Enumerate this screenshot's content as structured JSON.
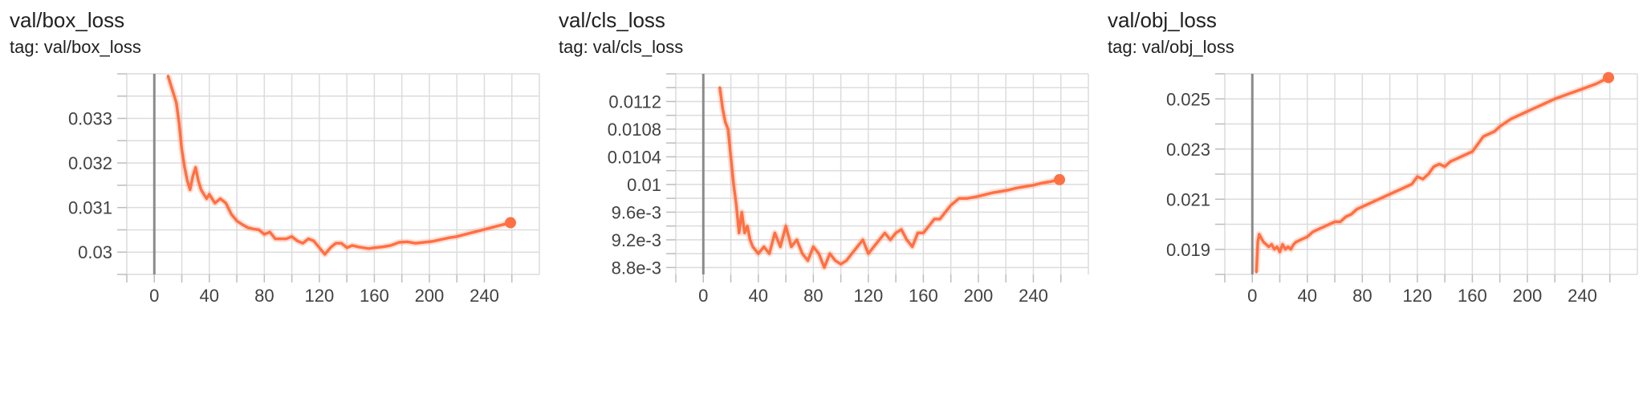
{
  "accent_color": "#ff7043",
  "charts": [
    {
      "title": "val/box_loss",
      "tag": "tag: val/box_loss"
    },
    {
      "title": "val/cls_loss",
      "tag": "tag: val/cls_loss"
    },
    {
      "title": "val/obj_loss",
      "tag": "tag: val/obj_loss"
    }
  ],
  "chart_data": [
    {
      "type": "line",
      "title": "val/box_loss",
      "xlabel": "",
      "ylabel": "",
      "xlim": [
        -20,
        280
      ],
      "ylim": [
        0.0295,
        0.034
      ],
      "xticks": [
        0,
        40,
        80,
        120,
        160,
        200,
        240
      ],
      "xtick_labels": [
        "0",
        "40",
        "80",
        "120",
        "160",
        "200",
        "240"
      ],
      "yticks": [
        0.03,
        0.031,
        0.032,
        0.033
      ],
      "ytick_labels": [
        "0.03",
        "0.031",
        "0.032",
        "0.033"
      ],
      "grid": true,
      "last_point": [
        259,
        0.03066
      ],
      "series": [
        {
          "smoothed": true,
          "x": [
            10,
            12,
            14,
            16,
            18,
            20,
            22,
            24,
            26,
            28,
            30,
            32,
            34,
            36,
            38,
            40,
            44,
            48,
            52,
            56,
            60,
            64,
            68,
            72,
            76,
            80,
            84,
            88,
            92,
            96,
            100,
            104,
            108,
            112,
            116,
            120,
            124,
            128,
            132,
            136,
            140,
            144,
            148,
            152,
            156,
            160,
            166,
            172,
            178,
            184,
            190,
            196,
            202,
            208,
            214,
            220,
            230,
            240,
            250,
            259
          ],
          "y": [
            0.03395,
            0.03375,
            0.03355,
            0.03335,
            0.0329,
            0.0323,
            0.0319,
            0.0316,
            0.0314,
            0.0317,
            0.0319,
            0.0316,
            0.0314,
            0.0313,
            0.0312,
            0.0313,
            0.0311,
            0.0312,
            0.0311,
            0.03085,
            0.0307,
            0.03062,
            0.03055,
            0.03052,
            0.0305,
            0.0304,
            0.03045,
            0.0303,
            0.0303,
            0.0303,
            0.03035,
            0.03025,
            0.0302,
            0.0303,
            0.03025,
            0.0301,
            0.02995,
            0.0301,
            0.0302,
            0.0302,
            0.0301,
            0.03015,
            0.03012,
            0.0301,
            0.03008,
            0.0301,
            0.03012,
            0.03015,
            0.03022,
            0.03023,
            0.0302,
            0.03022,
            0.03024,
            0.03028,
            0.03032,
            0.03035,
            0.03043,
            0.03051,
            0.03059,
            0.03066
          ]
        }
      ]
    },
    {
      "type": "line",
      "title": "val/cls_loss",
      "xlabel": "",
      "ylabel": "",
      "xlim": [
        -20,
        280
      ],
      "ylim": [
        0.0087,
        0.0116
      ],
      "xticks": [
        0,
        40,
        80,
        120,
        160,
        200,
        240
      ],
      "xtick_labels": [
        "0",
        "40",
        "80",
        "120",
        "160",
        "200",
        "240"
      ],
      "yticks": [
        0.0088,
        0.0092,
        0.0096,
        0.01,
        0.0104,
        0.0108,
        0.0112
      ],
      "ytick_labels": [
        "8.8e-3",
        "9.2e-3",
        "9.6e-3",
        "0.01",
        "0.0104",
        "0.0108",
        "0.0112"
      ],
      "grid": true,
      "last_point": [
        259,
        0.01007
      ],
      "series": [
        {
          "smoothed": true,
          "x": [
            12,
            14,
            16,
            18,
            20,
            22,
            24,
            26,
            28,
            30,
            32,
            34,
            36,
            40,
            44,
            48,
            52,
            56,
            60,
            64,
            68,
            72,
            76,
            80,
            84,
            88,
            92,
            96,
            100,
            104,
            108,
            112,
            116,
            120,
            124,
            128,
            132,
            136,
            140,
            144,
            148,
            152,
            156,
            160,
            164,
            168,
            172,
            176,
            180,
            186,
            192,
            198,
            204,
            210,
            216,
            222,
            228,
            234,
            240,
            246,
            252,
            259
          ],
          "y": [
            0.0114,
            0.0111,
            0.0109,
            0.0108,
            0.0104,
            0.01,
            0.0097,
            0.0093,
            0.0096,
            0.0093,
            0.0094,
            0.0092,
            0.0091,
            0.009,
            0.0091,
            0.009,
            0.0093,
            0.0091,
            0.0094,
            0.0091,
            0.0092,
            0.009,
            0.0089,
            0.0091,
            0.009,
            0.0088,
            0.009,
            0.0089,
            0.00885,
            0.0089,
            0.009,
            0.0091,
            0.0092,
            0.009,
            0.0091,
            0.0092,
            0.0093,
            0.0092,
            0.0093,
            0.00935,
            0.0092,
            0.0091,
            0.0093,
            0.0093,
            0.0094,
            0.0095,
            0.0095,
            0.0096,
            0.0097,
            0.0098,
            0.0098,
            0.00982,
            0.00985,
            0.00988,
            0.0099,
            0.00992,
            0.00995,
            0.00997,
            0.00999,
            0.01002,
            0.01004,
            0.01007
          ]
        }
      ]
    },
    {
      "type": "line",
      "title": "val/obj_loss",
      "xlabel": "",
      "ylabel": "",
      "xlim": [
        -20,
        280
      ],
      "ylim": [
        0.018,
        0.026
      ],
      "xticks": [
        0,
        40,
        80,
        120,
        160,
        200,
        240
      ],
      "xtick_labels": [
        "0",
        "40",
        "80",
        "120",
        "160",
        "200",
        "240"
      ],
      "yticks": [
        0.019,
        0.021,
        0.023,
        0.025
      ],
      "ytick_labels": [
        "0.019",
        "0.021",
        "0.023",
        "0.025"
      ],
      "grid": true,
      "last_point": [
        259,
        0.02585
      ],
      "series": [
        {
          "smoothed": true,
          "x": [
            3,
            4,
            5,
            6,
            8,
            10,
            12,
            14,
            16,
            18,
            20,
            22,
            24,
            26,
            28,
            30,
            32,
            36,
            40,
            44,
            48,
            52,
            56,
            60,
            64,
            68,
            72,
            76,
            80,
            84,
            88,
            92,
            96,
            100,
            104,
            108,
            112,
            116,
            120,
            124,
            128,
            132,
            136,
            140,
            144,
            148,
            152,
            156,
            160,
            164,
            168,
            172,
            176,
            180,
            188,
            196,
            204,
            212,
            220,
            230,
            240,
            250,
            259
          ],
          "y": [
            0.0181,
            0.0193,
            0.0196,
            0.0195,
            0.0193,
            0.0192,
            0.0191,
            0.0192,
            0.019,
            0.0191,
            0.0189,
            0.0192,
            0.019,
            0.0191,
            0.019,
            0.0192,
            0.0193,
            0.0194,
            0.0195,
            0.0197,
            0.0198,
            0.0199,
            0.02,
            0.0201,
            0.0201,
            0.0203,
            0.0204,
            0.0206,
            0.0207,
            0.0208,
            0.0209,
            0.021,
            0.0211,
            0.0212,
            0.0213,
            0.0214,
            0.0215,
            0.0216,
            0.0219,
            0.0218,
            0.022,
            0.0223,
            0.0224,
            0.0223,
            0.0225,
            0.0226,
            0.0227,
            0.0228,
            0.0229,
            0.0232,
            0.0235,
            0.0236,
            0.0237,
            0.0239,
            0.0242,
            0.0244,
            0.0246,
            0.0248,
            0.025,
            0.0252,
            0.0254,
            0.0256,
            0.02585
          ]
        }
      ]
    }
  ]
}
